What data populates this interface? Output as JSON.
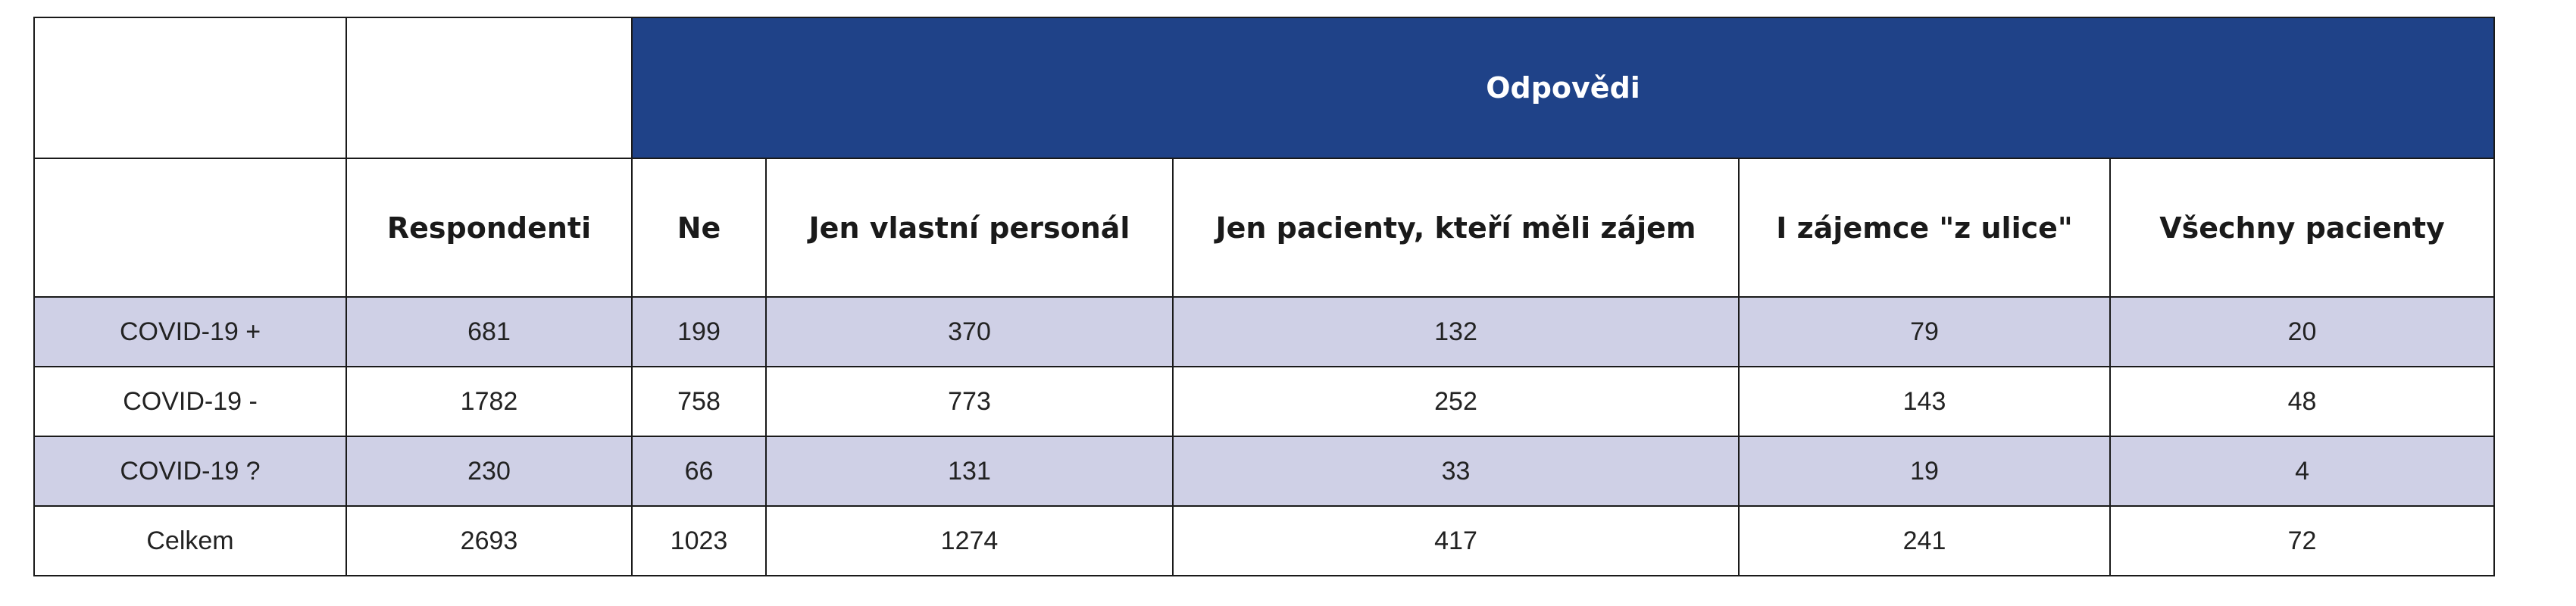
{
  "table": {
    "group_header": "Odpovědi",
    "columns": [
      "Respondenti",
      "Ne",
      "Jen vlastní personál",
      "Jen pacienty, kteří měli zájem",
      "I zájemce \"z ulice\"",
      "Všechny pacienty"
    ],
    "rows": [
      {
        "label": "COVID-19 +",
        "values": [
          "681",
          "199",
          "370",
          "132",
          "79",
          "20"
        ]
      },
      {
        "label": "COVID-19 -",
        "values": [
          "1782",
          "758",
          "773",
          "252",
          "143",
          "48"
        ]
      },
      {
        "label": "COVID-19 ?",
        "values": [
          "230",
          "66",
          "131",
          "33",
          "19",
          "4"
        ]
      },
      {
        "label": "Celkem",
        "values": [
          "2693",
          "1023",
          "1274",
          "417",
          "241",
          "72"
        ]
      }
    ],
    "colors": {
      "header_bg": "#1f4288",
      "header_text": "#ffffff",
      "shaded_row_bg": "#cfd0e6",
      "border": "#1a1a1a"
    }
  }
}
